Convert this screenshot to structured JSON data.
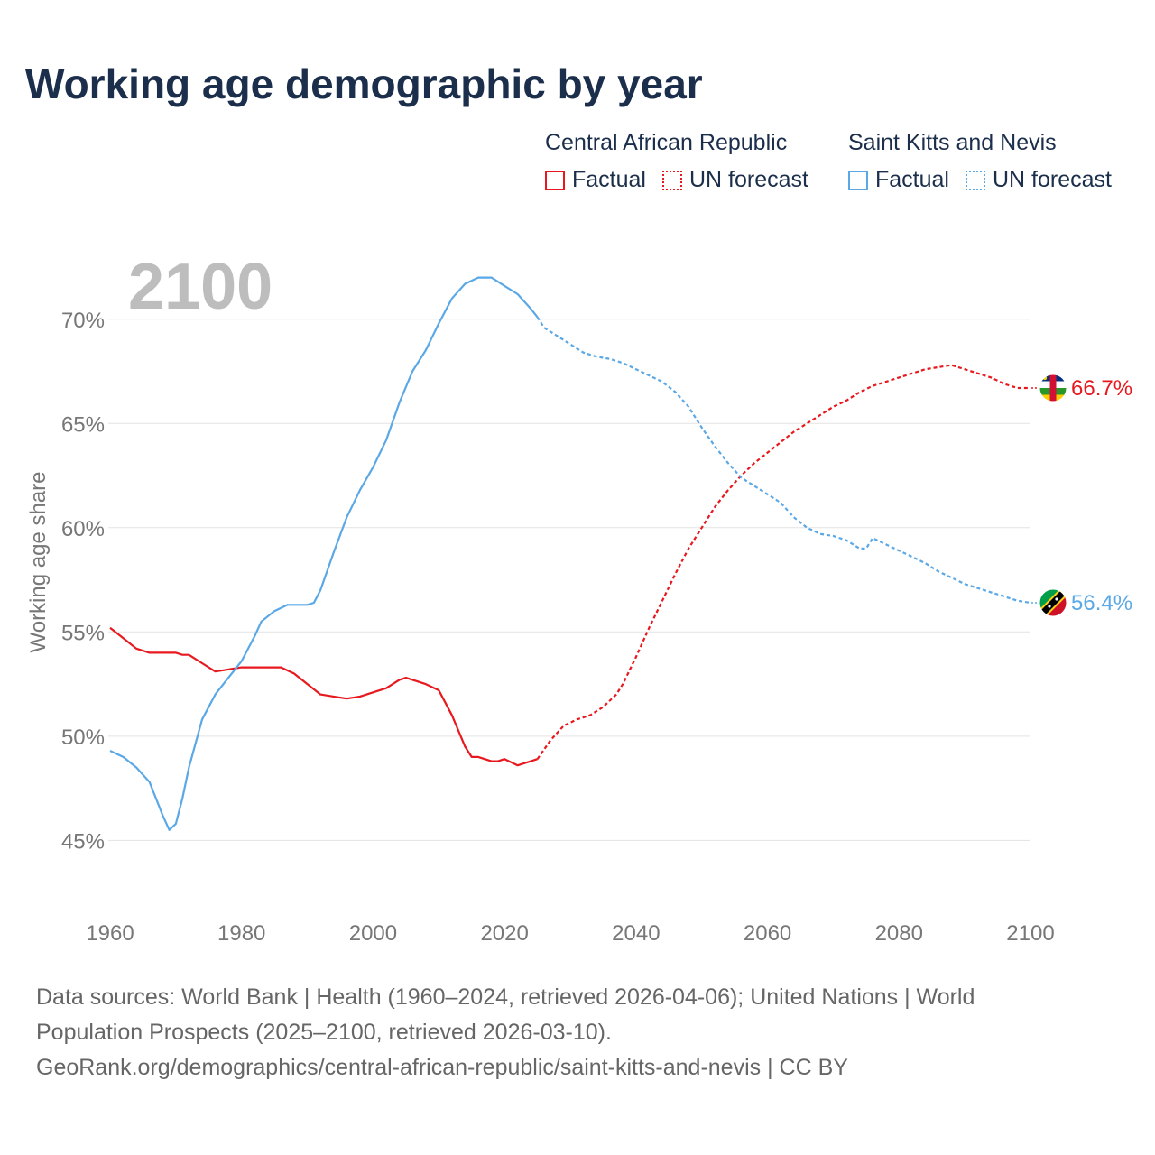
{
  "title": "Working age demographic by year",
  "legend": {
    "groups": [
      {
        "country": "Central African Republic",
        "factual_label": "Factual",
        "forecast_label": "UN forecast",
        "color": "#e8191e"
      },
      {
        "country": "Saint Kitts and Nevis",
        "factual_label": "Factual",
        "forecast_label": "UN forecast",
        "color": "#5ba8e6"
      }
    ]
  },
  "chart_data": {
    "type": "line",
    "title": "Working age demographic by year",
    "xlabel": "",
    "ylabel": "Working age share",
    "year_watermark": "2100",
    "xlim": [
      1960,
      2100
    ],
    "ylim": [
      43.5,
      72.5
    ],
    "x_ticks": [
      1960,
      1980,
      2000,
      2020,
      2040,
      2060,
      2080,
      2100
    ],
    "x_tick_labels": [
      "1960",
      "1980",
      "2000",
      "2020",
      "2040",
      "2060",
      "2080",
      "2100"
    ],
    "y_ticks": [
      45,
      50,
      55,
      60,
      65,
      70
    ],
    "y_tick_labels": [
      "45%",
      "50%",
      "55%",
      "60%",
      "65%",
      "70%"
    ],
    "grid": true,
    "forecast_start_year": 2025,
    "series": [
      {
        "name": "Central African Republic",
        "color": "#e8191e",
        "end_label": "66.7%",
        "end_icon": "central-african-republic-flag-icon",
        "points": [
          [
            1960,
            55.2
          ],
          [
            1962,
            54.7
          ],
          [
            1964,
            54.2
          ],
          [
            1966,
            54.0
          ],
          [
            1968,
            54.0
          ],
          [
            1970,
            54.0
          ],
          [
            1971,
            53.9
          ],
          [
            1972,
            53.9
          ],
          [
            1974,
            53.5
          ],
          [
            1976,
            53.1
          ],
          [
            1978,
            53.2
          ],
          [
            1980,
            53.3
          ],
          [
            1982,
            53.3
          ],
          [
            1984,
            53.3
          ],
          [
            1986,
            53.3
          ],
          [
            1988,
            53.0
          ],
          [
            1990,
            52.5
          ],
          [
            1992,
            52.0
          ],
          [
            1994,
            51.9
          ],
          [
            1996,
            51.8
          ],
          [
            1998,
            51.9
          ],
          [
            2000,
            52.1
          ],
          [
            2002,
            52.3
          ],
          [
            2004,
            52.7
          ],
          [
            2005,
            52.8
          ],
          [
            2008,
            52.5
          ],
          [
            2010,
            52.2
          ],
          [
            2012,
            51.0
          ],
          [
            2014,
            49.5
          ],
          [
            2015,
            49.0
          ],
          [
            2016,
            49.0
          ],
          [
            2018,
            48.8
          ],
          [
            2019,
            48.8
          ],
          [
            2020,
            48.9
          ],
          [
            2022,
            48.6
          ],
          [
            2024,
            48.8
          ],
          [
            2025,
            48.9
          ],
          [
            2027,
            49.8
          ],
          [
            2029,
            50.5
          ],
          [
            2031,
            50.8
          ],
          [
            2033,
            51.0
          ],
          [
            2035,
            51.4
          ],
          [
            2037,
            52.0
          ],
          [
            2038,
            52.5
          ],
          [
            2040,
            53.8
          ],
          [
            2042,
            55.2
          ],
          [
            2044,
            56.5
          ],
          [
            2046,
            57.8
          ],
          [
            2048,
            59.0
          ],
          [
            2050,
            60.0
          ],
          [
            2052,
            61.0
          ],
          [
            2054,
            61.8
          ],
          [
            2056,
            62.5
          ],
          [
            2058,
            63.1
          ],
          [
            2060,
            63.6
          ],
          [
            2062,
            64.1
          ],
          [
            2064,
            64.6
          ],
          [
            2066,
            65.0
          ],
          [
            2068,
            65.4
          ],
          [
            2070,
            65.8
          ],
          [
            2072,
            66.1
          ],
          [
            2074,
            66.5
          ],
          [
            2076,
            66.8
          ],
          [
            2078,
            67.0
          ],
          [
            2080,
            67.2
          ],
          [
            2082,
            67.4
          ],
          [
            2084,
            67.6
          ],
          [
            2086,
            67.7
          ],
          [
            2088,
            67.8
          ],
          [
            2090,
            67.6
          ],
          [
            2092,
            67.4
          ],
          [
            2094,
            67.2
          ],
          [
            2096,
            66.9
          ],
          [
            2098,
            66.7
          ],
          [
            2100,
            66.7
          ]
        ]
      },
      {
        "name": "Saint Kitts and Nevis",
        "color": "#5ba8e6",
        "end_label": "56.4%",
        "end_icon": "saint-kitts-and-nevis-flag-icon",
        "points": [
          [
            1960,
            49.3
          ],
          [
            1962,
            49.0
          ],
          [
            1964,
            48.5
          ],
          [
            1966,
            47.8
          ],
          [
            1968,
            46.2
          ],
          [
            1969,
            45.5
          ],
          [
            1970,
            45.8
          ],
          [
            1971,
            47.0
          ],
          [
            1972,
            48.5
          ],
          [
            1974,
            50.8
          ],
          [
            1976,
            52.0
          ],
          [
            1978,
            52.8
          ],
          [
            1980,
            53.6
          ],
          [
            1982,
            54.8
          ],
          [
            1983,
            55.5
          ],
          [
            1985,
            56.0
          ],
          [
            1987,
            56.3
          ],
          [
            1988,
            56.3
          ],
          [
            1990,
            56.3
          ],
          [
            1991,
            56.4
          ],
          [
            1992,
            57.0
          ],
          [
            1994,
            58.8
          ],
          [
            1996,
            60.5
          ],
          [
            1998,
            61.8
          ],
          [
            2000,
            62.9
          ],
          [
            2002,
            64.2
          ],
          [
            2004,
            66.0
          ],
          [
            2006,
            67.5
          ],
          [
            2008,
            68.5
          ],
          [
            2010,
            69.8
          ],
          [
            2012,
            71.0
          ],
          [
            2014,
            71.7
          ],
          [
            2016,
            72.0
          ],
          [
            2017,
            72.0
          ],
          [
            2018,
            72.0
          ],
          [
            2020,
            71.6
          ],
          [
            2022,
            71.2
          ],
          [
            2024,
            70.5
          ],
          [
            2025,
            70.1
          ],
          [
            2026,
            69.6
          ],
          [
            2028,
            69.2
          ],
          [
            2030,
            68.8
          ],
          [
            2032,
            68.4
          ],
          [
            2034,
            68.2
          ],
          [
            2036,
            68.1
          ],
          [
            2038,
            67.9
          ],
          [
            2040,
            67.6
          ],
          [
            2042,
            67.3
          ],
          [
            2044,
            67.0
          ],
          [
            2046,
            66.5
          ],
          [
            2048,
            65.8
          ],
          [
            2050,
            64.8
          ],
          [
            2052,
            63.9
          ],
          [
            2054,
            63.1
          ],
          [
            2056,
            62.4
          ],
          [
            2058,
            62.0
          ],
          [
            2060,
            61.6
          ],
          [
            2062,
            61.2
          ],
          [
            2064,
            60.5
          ],
          [
            2066,
            60.0
          ],
          [
            2068,
            59.7
          ],
          [
            2070,
            59.6
          ],
          [
            2072,
            59.4
          ],
          [
            2074,
            59.0
          ],
          [
            2075,
            59.0
          ],
          [
            2076,
            59.5
          ],
          [
            2078,
            59.2
          ],
          [
            2080,
            58.9
          ],
          [
            2082,
            58.6
          ],
          [
            2084,
            58.3
          ],
          [
            2086,
            57.9
          ],
          [
            2088,
            57.6
          ],
          [
            2090,
            57.3
          ],
          [
            2092,
            57.1
          ],
          [
            2094,
            56.9
          ],
          [
            2096,
            56.7
          ],
          [
            2098,
            56.5
          ],
          [
            2100,
            56.4
          ]
        ]
      }
    ]
  },
  "sources": {
    "line1": "Data sources: World Bank | Health (1960–2024, retrieved 2026-04-06); United Nations | World",
    "line2": "Population Prospects (2025–2100, retrieved 2026-03-10).",
    "line3": "GeoRank.org/demographics/central-african-republic/saint-kitts-and-nevis | CC BY"
  }
}
